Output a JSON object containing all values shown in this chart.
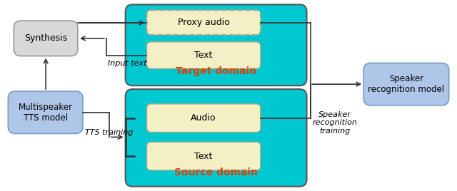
{
  "fig_width": 6.4,
  "fig_height": 2.68,
  "dpi": 100,
  "bg_color": "#ffffff",
  "cyan_color": "#00c8d0",
  "source_title": "Source domain",
  "target_title": "Target domain",
  "domain_title_color": "#e04000",
  "arrow_color": "#333333",
  "labels": {
    "tts_training": "TTS training",
    "input_text": "Input text",
    "spk_recog_training": "Speaker\nrecognition\ntraining"
  }
}
